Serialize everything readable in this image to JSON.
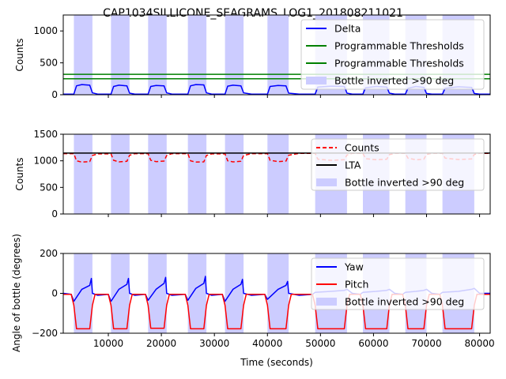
{
  "figure_title": "CAP1034SILLICONE_SEAGRAMS_LOG1_201808211021",
  "colors": {
    "shade": "#ccccff",
    "delta": "#0000ff",
    "threshold": "#008000",
    "counts": "#ff0000",
    "lta": "#000000",
    "yaw": "#0000ff",
    "pitch": "#ff0000"
  },
  "chart_data": [
    {
      "type": "line",
      "ylabel": "Counts",
      "xlim": [
        1500,
        82000
      ],
      "ylim": [
        0,
        1250
      ],
      "yticks": [
        0,
        500,
        1000
      ],
      "xticks": [
        10000,
        20000,
        30000,
        40000,
        50000,
        60000,
        70000,
        80000
      ],
      "grid": false,
      "legend_position": "upper right",
      "shaded_regions": [
        [
          3500,
          7000
        ],
        [
          10500,
          14000
        ],
        [
          17500,
          21000
        ],
        [
          25000,
          28500
        ],
        [
          32000,
          35500
        ],
        [
          40000,
          44000
        ],
        [
          49000,
          55000
        ],
        [
          58000,
          63000
        ],
        [
          66000,
          70000
        ],
        [
          73000,
          79000
        ]
      ],
      "thresholds": [
        320,
        250
      ],
      "legend": [
        "Delta",
        "Programmable Thresholds",
        "Programmable Thresholds",
        "Bottle inverted >90 deg"
      ],
      "series": [
        {
          "name": "Delta",
          "x": [
            1500,
            3500,
            4000,
            5000,
            6500,
            7000,
            8000,
            10500,
            11000,
            12000,
            13500,
            14000,
            15000,
            17500,
            18000,
            19000,
            20500,
            21000,
            22000,
            25000,
            25500,
            26500,
            28000,
            28500,
            29500,
            32000,
            32500,
            33500,
            35000,
            35500,
            37000,
            40000,
            40500,
            42000,
            43500,
            44000,
            46000,
            49000,
            49500,
            52000,
            54500,
            55000,
            56000,
            58000,
            58500,
            60500,
            62500,
            63000,
            64000,
            66000,
            66500,
            68000,
            69500,
            70000,
            71000,
            73000,
            73500,
            76000,
            78500,
            79000,
            80000,
            82000
          ],
          "y": [
            10,
            10,
            140,
            160,
            150,
            30,
            10,
            10,
            130,
            150,
            140,
            25,
            10,
            10,
            130,
            145,
            140,
            30,
            10,
            10,
            140,
            160,
            155,
            30,
            10,
            10,
            135,
            150,
            140,
            30,
            10,
            10,
            130,
            145,
            140,
            25,
            10,
            10,
            120,
            135,
            130,
            25,
            10,
            10,
            110,
            130,
            120,
            25,
            10,
            10,
            100,
            130,
            115,
            20,
            10,
            10,
            100,
            125,
            115,
            20,
            10,
            10
          ]
        }
      ]
    },
    {
      "type": "line",
      "ylabel": "Counts",
      "xlim": [
        1500,
        82000
      ],
      "ylim": [
        0,
        1500
      ],
      "yticks": [
        0,
        500,
        1000,
        1500
      ],
      "xticks": [
        10000,
        20000,
        30000,
        40000,
        50000,
        60000,
        70000,
        80000
      ],
      "grid": false,
      "legend_position": "upper right",
      "shaded_regions": [
        [
          3500,
          7000
        ],
        [
          10500,
          14000
        ],
        [
          17500,
          21000
        ],
        [
          25000,
          28500
        ],
        [
          32000,
          35500
        ],
        [
          40000,
          44000
        ],
        [
          49000,
          55000
        ],
        [
          58000,
          63000
        ],
        [
          66000,
          70000
        ],
        [
          73000,
          79000
        ]
      ],
      "legend": [
        "Counts",
        "LTA",
        "Bottle inverted >90 deg"
      ],
      "series": [
        {
          "name": "Counts",
          "x": [
            1500,
            3500,
            4000,
            5000,
            6500,
            7000,
            8000,
            10500,
            11000,
            12000,
            13500,
            14000,
            15000,
            17500,
            18000,
            19000,
            20500,
            21000,
            22000,
            25000,
            25500,
            26500,
            28000,
            28500,
            29500,
            32000,
            32500,
            33500,
            35000,
            35500,
            37000,
            40000,
            40500,
            42000,
            43500,
            44000,
            46000,
            49000,
            49500,
            52000,
            54500,
            55000,
            56000,
            58000,
            58500,
            60500,
            62500,
            63000,
            64000,
            66000,
            66500,
            68000,
            69500,
            70000,
            71000,
            73000,
            73500,
            76000,
            78500,
            79000,
            80000,
            82000
          ],
          "y": [
            1135,
            1135,
            1000,
            975,
            985,
            1100,
            1130,
            1130,
            1010,
            980,
            990,
            1105,
            1135,
            1135,
            1010,
            985,
            995,
            1100,
            1135,
            1135,
            1000,
            975,
            980,
            1100,
            1130,
            1130,
            1000,
            980,
            990,
            1100,
            1135,
            1135,
            1010,
            985,
            995,
            1105,
            1140,
            1140,
            1030,
            1010,
            1020,
            1110,
            1140,
            1140,
            1040,
            1020,
            1030,
            1115,
            1140,
            1140,
            1050,
            1020,
            1030,
            1120,
            1140,
            1140,
            1050,
            1025,
            1035,
            1120,
            1140,
            1140
          ]
        },
        {
          "name": "LTA",
          "x": [
            1500,
            82000
          ],
          "y": [
            1145,
            1145
          ]
        }
      ]
    },
    {
      "type": "line",
      "ylabel": "Angle of bottle (degrees)",
      "xlabel": "Time (seconds)",
      "xlim": [
        1500,
        82000
      ],
      "ylim": [
        -200,
        200
      ],
      "yticks": [
        -200,
        0,
        200
      ],
      "xticks": [
        10000,
        20000,
        30000,
        40000,
        50000,
        60000,
        70000,
        80000
      ],
      "grid": false,
      "legend_position": "upper right",
      "shaded_regions": [
        [
          3500,
          7000
        ],
        [
          10500,
          14000
        ],
        [
          17500,
          21000
        ],
        [
          25000,
          28500
        ],
        [
          32000,
          35500
        ],
        [
          40000,
          44000
        ],
        [
          49000,
          55000
        ],
        [
          58000,
          63000
        ],
        [
          66000,
          70000
        ],
        [
          73000,
          79000
        ]
      ],
      "legend": [
        "Yaw",
        "Pitch",
        "Bottle inverted >90 deg"
      ],
      "series": [
        {
          "name": "Yaw",
          "x": [
            1500,
            3000,
            3500,
            5000,
            6500,
            6800,
            7000,
            8000,
            10000,
            10500,
            12000,
            13500,
            13800,
            14000,
            15000,
            17000,
            17500,
            19000,
            20500,
            20800,
            21000,
            22000,
            24500,
            25000,
            26500,
            28000,
            28300,
            28500,
            29500,
            31500,
            32000,
            33500,
            35000,
            35300,
            35500,
            37000,
            39500,
            40000,
            42000,
            43500,
            43800,
            44000,
            46000,
            48500,
            49000,
            52000,
            54500,
            55000,
            56000,
            57500,
            58000,
            60500,
            62500,
            63000,
            64000,
            65500,
            66000,
            68000,
            69500,
            70000,
            71000,
            72500,
            73000,
            76000,
            78500,
            79000,
            80000,
            82000
          ],
          "y": [
            0,
            -5,
            -40,
            20,
            40,
            75,
            0,
            -10,
            -5,
            -40,
            20,
            45,
            75,
            0,
            -10,
            -5,
            -35,
            20,
            50,
            80,
            0,
            -10,
            -5,
            -35,
            25,
            50,
            85,
            0,
            -10,
            -5,
            -40,
            20,
            45,
            70,
            0,
            -10,
            -5,
            -30,
            20,
            40,
            60,
            0,
            -10,
            -5,
            5,
            10,
            15,
            20,
            0,
            -5,
            5,
            10,
            15,
            20,
            0,
            -5,
            5,
            10,
            15,
            20,
            0,
            -5,
            5,
            10,
            20,
            25,
            0,
            0
          ]
        },
        {
          "name": "Pitch",
          "x": [
            1500,
            3000,
            3500,
            4000,
            6500,
            7000,
            7500,
            10000,
            10500,
            11000,
            13500,
            14000,
            14500,
            17000,
            17500,
            18000,
            20500,
            21000,
            21500,
            24500,
            25000,
            25500,
            28000,
            28500,
            29000,
            31500,
            32000,
            32500,
            35000,
            35500,
            36000,
            39500,
            40000,
            40500,
            43500,
            44000,
            44500,
            48500,
            49000,
            49500,
            54500,
            55000,
            55500,
            57500,
            58000,
            58500,
            62500,
            63000,
            63500,
            65500,
            66000,
            66500,
            69500,
            70000,
            70500,
            72500,
            73000,
            73500,
            78500,
            79000,
            79500,
            82000
          ],
          "y": [
            -5,
            -5,
            -60,
            -178,
            -178,
            -60,
            -5,
            -5,
            -60,
            -178,
            -178,
            -60,
            -5,
            -5,
            -60,
            -175,
            -175,
            -60,
            -5,
            -5,
            -60,
            -178,
            -178,
            -60,
            -5,
            -5,
            -60,
            -178,
            -178,
            -60,
            -5,
            -5,
            -60,
            -178,
            -178,
            -60,
            -5,
            -5,
            -60,
            -178,
            -178,
            -60,
            -5,
            -5,
            -60,
            -178,
            -178,
            -60,
            -5,
            -5,
            -60,
            -178,
            -178,
            -60,
            -5,
            -5,
            -60,
            -178,
            -178,
            -60,
            -5,
            -5
          ]
        }
      ]
    }
  ]
}
